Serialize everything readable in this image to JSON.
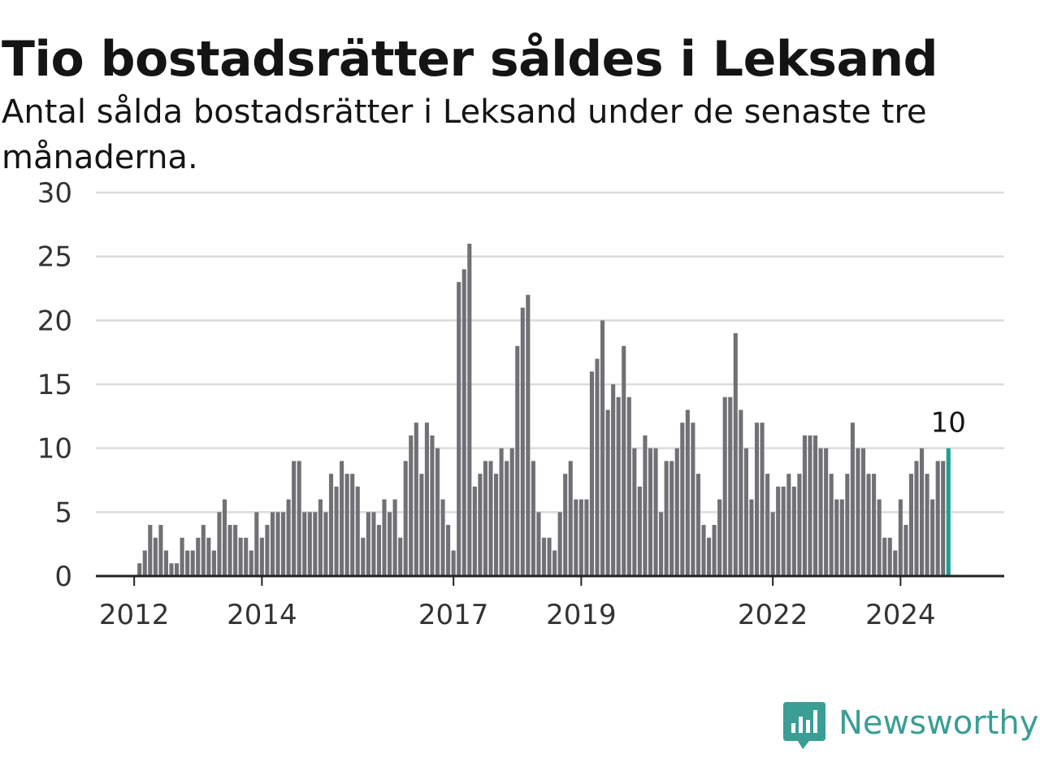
{
  "title": "Tio bostadsrätter såldes i Leksand",
  "subtitle": "Antal sålda bostadsrätter i Leksand under de senaste tre månaderna.",
  "brand": {
    "name": "Newsworthy",
    "icon": "newsworthy-chart-bubble-icon",
    "color": "#3a9e95"
  },
  "chart_data": {
    "type": "bar",
    "ylim": [
      0,
      30
    ],
    "yticks": [
      0,
      5,
      10,
      15,
      20,
      25,
      30
    ],
    "xtick_labels": [
      {
        "label": "2012",
        "index": 3
      },
      {
        "label": "2014",
        "index": 27
      },
      {
        "label": "2017",
        "index": 63
      },
      {
        "label": "2019",
        "index": 87
      },
      {
        "label": "2022",
        "index": 123
      },
      {
        "label": "2024",
        "index": 147
      }
    ],
    "grid": true,
    "bar_color": "#707075",
    "highlight_color": "#1b9f93",
    "last_value_label": "10",
    "values": [
      0,
      0,
      0,
      0,
      1,
      2,
      4,
      3,
      4,
      2,
      1,
      1,
      3,
      2,
      2,
      3,
      4,
      3,
      2,
      5,
      6,
      4,
      4,
      3,
      3,
      2,
      5,
      3,
      4,
      5,
      5,
      5,
      6,
      9,
      9,
      5,
      5,
      5,
      6,
      5,
      8,
      7,
      9,
      8,
      8,
      7,
      3,
      5,
      5,
      4,
      6,
      5,
      6,
      3,
      9,
      11,
      12,
      8,
      12,
      11,
      10,
      6,
      4,
      2,
      23,
      24,
      26,
      7,
      8,
      9,
      9,
      8,
      10,
      9,
      10,
      18,
      21,
      22,
      9,
      5,
      3,
      3,
      2,
      5,
      8,
      9,
      6,
      6,
      6,
      16,
      17,
      20,
      13,
      15,
      14,
      18,
      14,
      10,
      7,
      11,
      10,
      10,
      5,
      9,
      9,
      10,
      12,
      13,
      12,
      8,
      4,
      3,
      4,
      6,
      14,
      14,
      19,
      13,
      10,
      6,
      12,
      12,
      8,
      5,
      7,
      7,
      8,
      7,
      8,
      11,
      11,
      11,
      10,
      10,
      8,
      6,
      6,
      8,
      12,
      10,
      10,
      8,
      8,
      6,
      3,
      3,
      2,
      6,
      4,
      8,
      9,
      10,
      8,
      6,
      9,
      9,
      10
    ]
  }
}
